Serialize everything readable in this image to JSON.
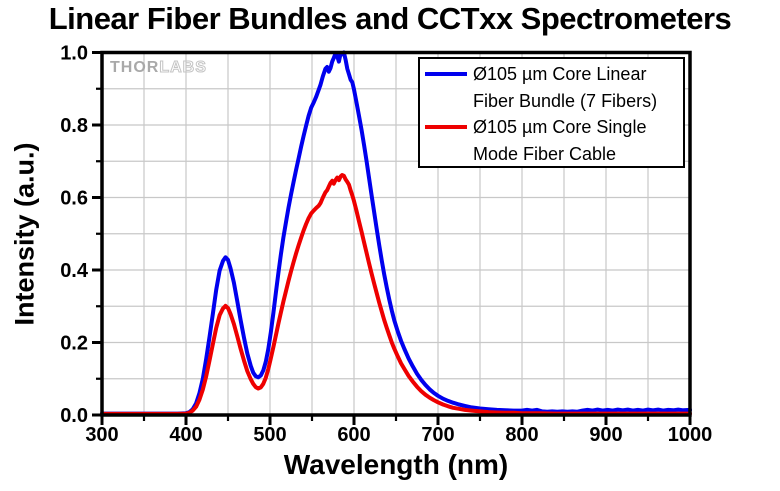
{
  "watermark": {
    "part1": "THOR",
    "part2": "LABS"
  },
  "chart_data": {
    "type": "line",
    "title": "Linear Fiber Bundles and CCTxx Spectrometers",
    "xlabel": "Wavelength (nm)",
    "ylabel": "Intensity (a.u.)",
    "xlim": [
      300,
      1000
    ],
    "ylim": [
      0,
      1
    ],
    "x_ticks": [
      300,
      400,
      500,
      600,
      700,
      800,
      900,
      1000
    ],
    "x_tick_labels": [
      "300",
      "400",
      "500",
      "600",
      "700",
      "800",
      "900",
      "1000"
    ],
    "x_minor_step": 50,
    "y_ticks": [
      0,
      0.2,
      0.4,
      0.6,
      0.8,
      1.0
    ],
    "y_tick_labels": [
      "0.0",
      "0.2",
      "0.4",
      "0.6",
      "0.8",
      "1.0"
    ],
    "y_minor_step": 0.1,
    "grid": "on, minor, both axes",
    "legend_position": "top-right",
    "colors": {
      "grid": "#c8c8c8",
      "frame": "#000000",
      "background": "#ffffff"
    },
    "legend": [
      {
        "line1": "Ø105 µm Core Linear",
        "line2": "Fiber Bundle (7 Fibers)",
        "color": "#0000ee"
      },
      {
        "line1": "Ø105 µm Core Single",
        "line2": "Mode Fiber Cable",
        "color": "#ee0000"
      }
    ],
    "series": [
      {
        "id": "linear-fiber-bundle",
        "name": "Ø105 µm Core Linear Fiber Bundle (7 Fibers)",
        "color": "#0000ee",
        "points": [
          [
            300,
            0.004
          ],
          [
            330,
            0.004
          ],
          [
            360,
            0.004
          ],
          [
            390,
            0.004
          ],
          [
            400,
            0.005
          ],
          [
            404,
            0.008
          ],
          [
            408,
            0.016
          ],
          [
            412,
            0.032
          ],
          [
            416,
            0.06
          ],
          [
            420,
            0.1
          ],
          [
            424,
            0.155
          ],
          [
            428,
            0.215
          ],
          [
            432,
            0.28
          ],
          [
            436,
            0.345
          ],
          [
            440,
            0.398
          ],
          [
            444,
            0.425
          ],
          [
            447,
            0.435
          ],
          [
            450,
            0.428
          ],
          [
            453,
            0.405
          ],
          [
            457,
            0.365
          ],
          [
            461,
            0.315
          ],
          [
            465,
            0.262
          ],
          [
            469,
            0.213
          ],
          [
            473,
            0.17
          ],
          [
            477,
            0.136
          ],
          [
            480,
            0.117
          ],
          [
            483,
            0.107
          ],
          [
            486,
            0.104
          ],
          [
            489,
            0.109
          ],
          [
            492,
            0.123
          ],
          [
            495,
            0.147
          ],
          [
            498,
            0.182
          ],
          [
            501,
            0.228
          ],
          [
            504,
            0.282
          ],
          [
            507,
            0.338
          ],
          [
            510,
            0.392
          ],
          [
            513,
            0.443
          ],
          [
            516,
            0.49
          ],
          [
            519,
            0.532
          ],
          [
            522,
            0.572
          ],
          [
            525,
            0.608
          ],
          [
            528,
            0.642
          ],
          [
            531,
            0.675
          ],
          [
            534,
            0.708
          ],
          [
            537,
            0.74
          ],
          [
            540,
            0.77
          ],
          [
            543,
            0.798
          ],
          [
            546,
            0.825
          ],
          [
            549,
            0.848
          ],
          [
            552,
            0.862
          ],
          [
            555,
            0.878
          ],
          [
            558,
            0.897
          ],
          [
            560,
            0.91
          ],
          [
            563,
            0.935
          ],
          [
            566,
            0.955
          ],
          [
            568,
            0.96
          ],
          [
            570,
            0.947
          ],
          [
            572,
            0.957
          ],
          [
            574,
            0.975
          ],
          [
            576,
            0.985
          ],
          [
            578,
            0.997
          ],
          [
            580,
            0.99
          ],
          [
            582,
            0.975
          ],
          [
            584,
            0.997
          ],
          [
            586,
            0.995
          ],
          [
            588,
            1.0
          ],
          [
            590,
            0.98
          ],
          [
            592,
            0.955
          ],
          [
            594,
            0.94
          ],
          [
            596,
            0.925
          ],
          [
            598,
            0.918
          ],
          [
            600,
            0.898
          ],
          [
            603,
            0.862
          ],
          [
            606,
            0.825
          ],
          [
            609,
            0.786
          ],
          [
            612,
            0.744
          ],
          [
            615,
            0.7
          ],
          [
            618,
            0.653
          ],
          [
            621,
            0.606
          ],
          [
            624,
            0.559
          ],
          [
            627,
            0.513
          ],
          [
            630,
            0.469
          ],
          [
            633,
            0.427
          ],
          [
            636,
            0.388
          ],
          [
            639,
            0.351
          ],
          [
            642,
            0.318
          ],
          [
            645,
            0.288
          ],
          [
            648,
            0.261
          ],
          [
            652,
            0.231
          ],
          [
            656,
            0.205
          ],
          [
            660,
            0.182
          ],
          [
            665,
            0.156
          ],
          [
            670,
            0.134
          ],
          [
            675,
            0.114
          ],
          [
            680,
            0.097
          ],
          [
            685,
            0.083
          ],
          [
            690,
            0.071
          ],
          [
            695,
            0.061
          ],
          [
            700,
            0.053
          ],
          [
            706,
            0.045
          ],
          [
            712,
            0.039
          ],
          [
            718,
            0.034
          ],
          [
            725,
            0.029
          ],
          [
            732,
            0.025
          ],
          [
            740,
            0.021
          ],
          [
            750,
            0.018
          ],
          [
            760,
            0.016
          ],
          [
            770,
            0.014
          ],
          [
            780,
            0.013
          ],
          [
            790,
            0.012
          ],
          [
            800,
            0.012
          ],
          [
            806,
            0.014
          ],
          [
            812,
            0.012
          ],
          [
            818,
            0.014
          ],
          [
            824,
            0.01
          ],
          [
            830,
            0.009
          ],
          [
            836,
            0.01
          ],
          [
            842,
            0.009
          ],
          [
            848,
            0.01
          ],
          [
            854,
            0.009
          ],
          [
            860,
            0.01
          ],
          [
            866,
            0.009
          ],
          [
            872,
            0.012
          ],
          [
            878,
            0.014
          ],
          [
            884,
            0.012
          ],
          [
            890,
            0.015
          ],
          [
            896,
            0.012
          ],
          [
            902,
            0.014
          ],
          [
            908,
            0.012
          ],
          [
            914,
            0.015
          ],
          [
            920,
            0.013
          ],
          [
            926,
            0.015
          ],
          [
            932,
            0.012
          ],
          [
            938,
            0.014
          ],
          [
            944,
            0.012
          ],
          [
            950,
            0.015
          ],
          [
            956,
            0.013
          ],
          [
            962,
            0.015
          ],
          [
            968,
            0.012
          ],
          [
            974,
            0.014
          ],
          [
            980,
            0.013
          ],
          [
            986,
            0.015
          ],
          [
            992,
            0.013
          ],
          [
            1000,
            0.014
          ]
        ]
      },
      {
        "id": "single-mode-fiber-cable",
        "name": "Ø105 µm Core Single Mode Fiber Cable",
        "color": "#ee0000",
        "points": [
          [
            300,
            0.003
          ],
          [
            330,
            0.003
          ],
          [
            360,
            0.003
          ],
          [
            390,
            0.003
          ],
          [
            400,
            0.004
          ],
          [
            404,
            0.006
          ],
          [
            408,
            0.012
          ],
          [
            412,
            0.023
          ],
          [
            416,
            0.042
          ],
          [
            420,
            0.07
          ],
          [
            424,
            0.107
          ],
          [
            428,
            0.15
          ],
          [
            432,
            0.196
          ],
          [
            436,
            0.24
          ],
          [
            440,
            0.275
          ],
          [
            444,
            0.294
          ],
          [
            447,
            0.301
          ],
          [
            450,
            0.295
          ],
          [
            453,
            0.279
          ],
          [
            457,
            0.251
          ],
          [
            461,
            0.218
          ],
          [
            465,
            0.183
          ],
          [
            469,
            0.15
          ],
          [
            473,
            0.121
          ],
          [
            477,
            0.099
          ],
          [
            480,
            0.086
          ],
          [
            483,
            0.077
          ],
          [
            486,
            0.073
          ],
          [
            489,
            0.076
          ],
          [
            492,
            0.086
          ],
          [
            495,
            0.103
          ],
          [
            498,
            0.127
          ],
          [
            501,
            0.156
          ],
          [
            504,
            0.188
          ],
          [
            507,
            0.22
          ],
          [
            510,
            0.252
          ],
          [
            513,
            0.283
          ],
          [
            516,
            0.313
          ],
          [
            519,
            0.342
          ],
          [
            522,
            0.37
          ],
          [
            525,
            0.396
          ],
          [
            528,
            0.421
          ],
          [
            531,
            0.445
          ],
          [
            534,
            0.468
          ],
          [
            537,
            0.489
          ],
          [
            540,
            0.509
          ],
          [
            543,
            0.527
          ],
          [
            546,
            0.543
          ],
          [
            549,
            0.556
          ],
          [
            552,
            0.564
          ],
          [
            555,
            0.571
          ],
          [
            558,
            0.577
          ],
          [
            560,
            0.584
          ],
          [
            563,
            0.6
          ],
          [
            566,
            0.614
          ],
          [
            568,
            0.62
          ],
          [
            570,
            0.63
          ],
          [
            572,
            0.64
          ],
          [
            574,
            0.646
          ],
          [
            576,
            0.638
          ],
          [
            578,
            0.648
          ],
          [
            580,
            0.655
          ],
          [
            582,
            0.648
          ],
          [
            584,
            0.658
          ],
          [
            586,
            0.662
          ],
          [
            588,
            0.66
          ],
          [
            590,
            0.65
          ],
          [
            592,
            0.643
          ],
          [
            594,
            0.635
          ],
          [
            596,
            0.62
          ],
          [
            598,
            0.606
          ],
          [
            600,
            0.59
          ],
          [
            603,
            0.563
          ],
          [
            606,
            0.534
          ],
          [
            609,
            0.505
          ],
          [
            612,
            0.476
          ],
          [
            615,
            0.447
          ],
          [
            618,
            0.418
          ],
          [
            621,
            0.39
          ],
          [
            624,
            0.362
          ],
          [
            627,
            0.336
          ],
          [
            630,
            0.31
          ],
          [
            633,
            0.286
          ],
          [
            636,
            0.262
          ],
          [
            639,
            0.24
          ],
          [
            642,
            0.22
          ],
          [
            645,
            0.2
          ],
          [
            648,
            0.183
          ],
          [
            652,
            0.162
          ],
          [
            656,
            0.143
          ],
          [
            660,
            0.127
          ],
          [
            665,
            0.108
          ],
          [
            670,
            0.092
          ],
          [
            675,
            0.078
          ],
          [
            680,
            0.066
          ],
          [
            685,
            0.056
          ],
          [
            690,
            0.048
          ],
          [
            695,
            0.041
          ],
          [
            700,
            0.035
          ],
          [
            706,
            0.029
          ],
          [
            712,
            0.024
          ],
          [
            718,
            0.02
          ],
          [
            725,
            0.017
          ],
          [
            732,
            0.014
          ],
          [
            740,
            0.012
          ],
          [
            750,
            0.01
          ],
          [
            760,
            0.008
          ],
          [
            770,
            0.007
          ],
          [
            780,
            0.006
          ],
          [
            790,
            0.006
          ],
          [
            800,
            0.005
          ],
          [
            820,
            0.005
          ],
          [
            840,
            0.004
          ],
          [
            860,
            0.004
          ],
          [
            880,
            0.004
          ],
          [
            900,
            0.004
          ],
          [
            920,
            0.004
          ],
          [
            940,
            0.004
          ],
          [
            960,
            0.004
          ],
          [
            980,
            0.004
          ],
          [
            1000,
            0.004
          ]
        ]
      }
    ]
  }
}
